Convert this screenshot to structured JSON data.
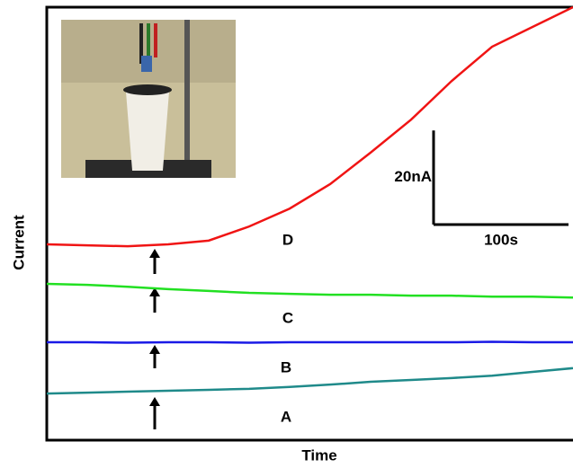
{
  "chart_data": {
    "type": "line",
    "x_label": "Time",
    "y_label": "Current",
    "x": [
      0,
      30,
      60,
      90,
      120,
      150,
      180,
      210,
      240,
      270,
      300,
      330,
      360,
      390
    ],
    "xlim": [
      0,
      390
    ],
    "ylim": [
      0,
      92
    ],
    "series": [
      {
        "name": "A",
        "color": "#1f8a8a",
        "values": [
          9.9,
          10.1,
          10.3,
          10.5,
          10.7,
          10.9,
          11.3,
          11.8,
          12.4,
          12.8,
          13.2,
          13.7,
          14.5,
          15.3
        ]
      },
      {
        "name": "B",
        "color": "#1a1ae6",
        "values": [
          20.8,
          20.8,
          20.7,
          20.8,
          20.8,
          20.7,
          20.8,
          20.8,
          20.8,
          20.8,
          20.8,
          20.9,
          20.8,
          20.8
        ]
      },
      {
        "name": "C",
        "color": "#22e022",
        "values": [
          33.2,
          33.0,
          32.6,
          32.1,
          31.7,
          31.3,
          31.1,
          30.9,
          30.9,
          30.7,
          30.7,
          30.5,
          30.5,
          30.3
        ]
      },
      {
        "name": "D",
        "color": "#f01414",
        "values": [
          41.6,
          41.4,
          41.2,
          41.6,
          42.4,
          45.4,
          49.2,
          54.4,
          61.1,
          68.1,
          76.3,
          83.6,
          87.8,
          92.0
        ]
      }
    ],
    "scale_bar": {
      "y": {
        "value": 20,
        "label": "20nA"
      },
      "x": {
        "value": 100,
        "label": "100s"
      }
    }
  }
}
